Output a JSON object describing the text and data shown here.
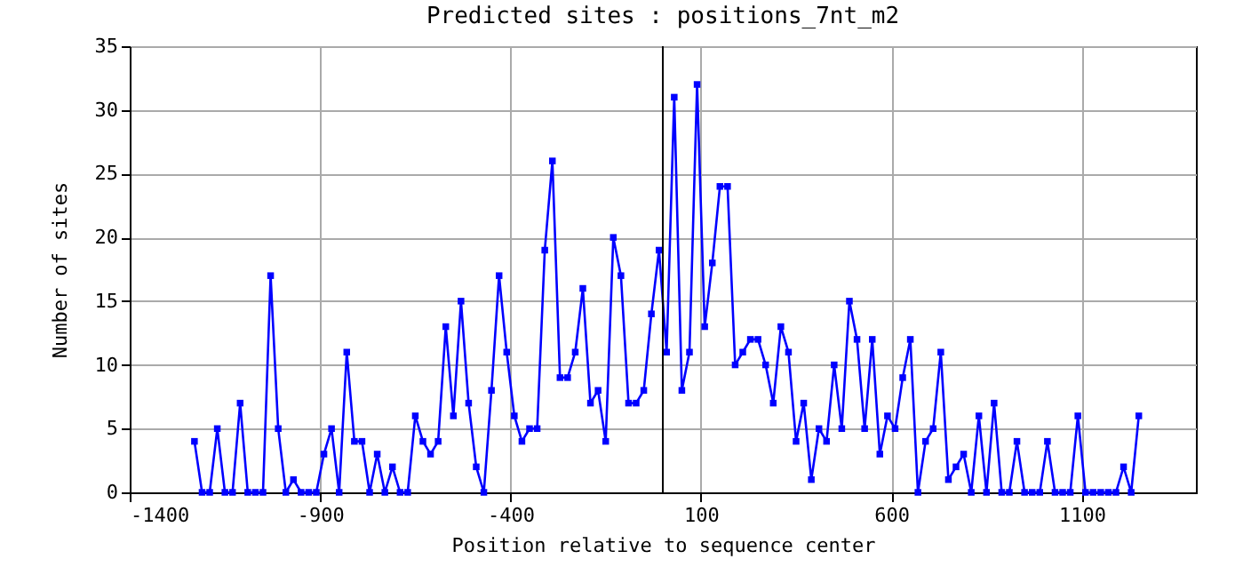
{
  "chart_data": {
    "type": "line",
    "title": "Predicted sites : positions_7nt_m2",
    "xlabel": "Position relative to sequence center",
    "ylabel": "Number of sites",
    "x": [
      -1230,
      -1210,
      -1190,
      -1170,
      -1150,
      -1130,
      -1110,
      -1090,
      -1070,
      -1050,
      -1030,
      -1010,
      -990,
      -970,
      -950,
      -930,
      -910,
      -890,
      -870,
      -850,
      -830,
      -810,
      -790,
      -770,
      -750,
      -730,
      -710,
      -690,
      -670,
      -650,
      -630,
      -610,
      -590,
      -570,
      -550,
      -530,
      -510,
      -490,
      -470,
      -450,
      -430,
      -410,
      -390,
      -370,
      -350,
      -330,
      -310,
      -290,
      -270,
      -250,
      -230,
      -210,
      -190,
      -170,
      -150,
      -130,
      -110,
      -90,
      -70,
      -50,
      -30,
      -10,
      10,
      30,
      50,
      70,
      90,
      110,
      130,
      150,
      170,
      190,
      210,
      230,
      250,
      270,
      290,
      310,
      330,
      350,
      370,
      390,
      410,
      430,
      450,
      470,
      490,
      510,
      530,
      550,
      570,
      590,
      610,
      630,
      650,
      670,
      690,
      710,
      730,
      750,
      770,
      790,
      810,
      830,
      850,
      870,
      890,
      910,
      930,
      950,
      970,
      990,
      1010,
      1030,
      1050,
      1070,
      1090,
      1110,
      1130,
      1150,
      1170,
      1190,
      1210,
      1230,
      1250
    ],
    "series": [
      {
        "color": "#0000ff",
        "values": [
          4,
          0,
          0,
          5,
          0,
          0,
          7,
          0,
          0,
          0,
          17,
          5,
          0,
          1,
          0,
          0,
          0,
          3,
          5,
          0,
          11,
          4,
          4,
          0,
          3,
          0,
          2,
          0,
          0,
          6,
          4,
          3,
          4,
          13,
          6,
          15,
          7,
          2,
          0,
          8,
          17,
          11,
          6,
          4,
          5,
          5,
          19,
          26,
          9,
          9,
          11,
          16,
          7,
          8,
          4,
          20,
          17,
          7,
          7,
          8,
          14,
          19,
          11,
          31,
          8,
          11,
          32,
          13,
          18,
          24,
          24,
          10,
          11,
          12,
          12,
          10,
          7,
          13,
          11,
          4,
          7,
          1,
          5,
          4,
          10,
          5,
          15,
          12,
          5,
          12,
          3,
          6,
          5,
          9,
          12,
          0,
          4,
          5,
          11,
          1,
          2,
          3,
          0,
          6,
          0,
          7,
          0,
          0,
          4,
          0,
          0,
          0,
          4,
          0,
          0,
          0,
          6,
          0,
          0,
          0,
          0,
          0,
          2,
          0,
          6
        ]
      }
    ],
    "xlim": [
      -1400,
      1400
    ],
    "xticks": [
      -1400,
      -900,
      -400,
      100,
      600,
      1100
    ],
    "ylim": [
      0,
      35
    ],
    "yticks": [
      0,
      5,
      10,
      15,
      20,
      25,
      30,
      35
    ],
    "ref_lines": [
      {
        "axis": "x",
        "value": 0,
        "color": "#000000"
      }
    ],
    "grid": true,
    "marker": "square",
    "line_style": "solid"
  }
}
